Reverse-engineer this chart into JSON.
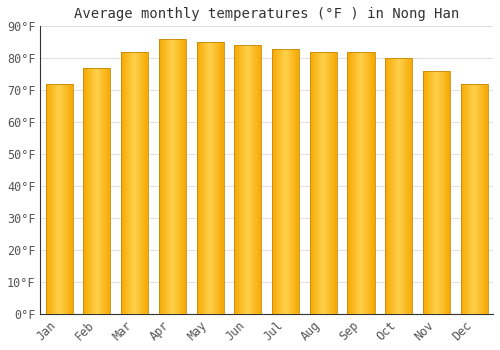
{
  "title": "Average monthly temperatures (°F ) in Nong Han",
  "months": [
    "Jan",
    "Feb",
    "Mar",
    "Apr",
    "May",
    "Jun",
    "Jul",
    "Aug",
    "Sep",
    "Oct",
    "Nov",
    "Dec"
  ],
  "values": [
    72,
    77,
    82,
    86,
    85,
    84,
    83,
    82,
    82,
    80,
    76,
    72
  ],
  "bar_color_center": "#FFD04B",
  "bar_color_edge": "#F5A800",
  "bar_edge_color": "#B8860B",
  "ylim": [
    0,
    90
  ],
  "yticks": [
    0,
    10,
    20,
    30,
    40,
    50,
    60,
    70,
    80,
    90
  ],
  "ytick_labels": [
    "0°F",
    "10°F",
    "20°F",
    "30°F",
    "40°F",
    "50°F",
    "60°F",
    "70°F",
    "80°F",
    "90°F"
  ],
  "bg_color": "#FFFFFF",
  "grid_color": "#E0E0E0",
  "title_fontsize": 10,
  "tick_fontsize": 8.5
}
